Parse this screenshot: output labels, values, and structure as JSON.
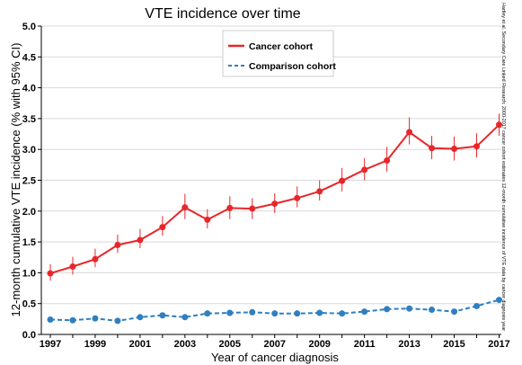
{
  "side_note": "Hartley et al. Secondary Care Linked Research; 2000-2017 cancer cohort estimates 12-month cumulative incidence of VTE data by cancer diagnosis year",
  "chart_data": {
    "type": "line",
    "title": "VTE incidence over time",
    "xlabel": "Year of cancer diagnosis",
    "ylabel": "12-month cumulative VTE incidence (% with 95% CI)",
    "xlim": [
      1996.6,
      2017.1
    ],
    "ylim": [
      0,
      5.0
    ],
    "grid": "horizontal",
    "legend_position": "top-center",
    "x_ticks": [
      1997,
      1999,
      2001,
      2003,
      2005,
      2007,
      2009,
      2011,
      2013,
      2015,
      2017
    ],
    "y_ticks": [
      0.0,
      0.5,
      1.0,
      1.5,
      2.0,
      2.5,
      3.0,
      3.5,
      4.0,
      4.5,
      5.0
    ],
    "y_tick_labels": [
      "0.0",
      "0.5",
      "1.0",
      "1.5",
      "2.0",
      "2.5",
      "3.0",
      "3.5",
      "4.0",
      "4.5",
      "5.0"
    ],
    "x": [
      1997,
      1998,
      1999,
      2000,
      2001,
      2002,
      2003,
      2004,
      2005,
      2006,
      2007,
      2008,
      2009,
      2010,
      2011,
      2012,
      2013,
      2014,
      2015,
      2016,
      2017
    ],
    "series": [
      {
        "name": "Cancer cohort",
        "color": "#e8262a",
        "line_style": "solid",
        "values": [
          0.99,
          1.1,
          1.22,
          1.45,
          1.53,
          1.74,
          2.06,
          1.86,
          2.05,
          2.04,
          2.12,
          2.21,
          2.32,
          2.49,
          2.67,
          2.82,
          3.28,
          3.02,
          3.01,
          3.05,
          3.4
        ],
        "ci_low": [
          0.87,
          0.97,
          1.09,
          1.32,
          1.4,
          1.6,
          1.87,
          1.72,
          1.87,
          1.87,
          1.97,
          2.06,
          2.17,
          2.32,
          2.5,
          2.64,
          3.08,
          2.84,
          2.82,
          2.87,
          3.22
        ],
        "ci_high": [
          1.14,
          1.26,
          1.39,
          1.62,
          1.71,
          1.92,
          2.28,
          2.03,
          2.24,
          2.21,
          2.29,
          2.4,
          2.5,
          2.7,
          2.86,
          3.04,
          3.52,
          3.22,
          3.21,
          3.26,
          3.58
        ]
      },
      {
        "name": "Comparison cohort",
        "color": "#2f7fc1",
        "line_style": "dashed",
        "values": [
          0.24,
          0.23,
          0.26,
          0.22,
          0.28,
          0.31,
          0.28,
          0.34,
          0.35,
          0.36,
          0.34,
          0.34,
          0.35,
          0.34,
          0.37,
          0.41,
          0.42,
          0.4,
          0.37,
          0.46,
          0.56
        ],
        "ci_low": [
          0.21,
          0.2,
          0.23,
          0.19,
          0.25,
          0.28,
          0.25,
          0.31,
          0.32,
          0.33,
          0.31,
          0.31,
          0.32,
          0.31,
          0.34,
          0.38,
          0.39,
          0.37,
          0.34,
          0.43,
          0.52
        ],
        "ci_high": [
          0.27,
          0.26,
          0.29,
          0.25,
          0.31,
          0.34,
          0.31,
          0.37,
          0.38,
          0.39,
          0.37,
          0.37,
          0.38,
          0.37,
          0.4,
          0.44,
          0.45,
          0.43,
          0.4,
          0.49,
          0.6
        ]
      }
    ]
  }
}
